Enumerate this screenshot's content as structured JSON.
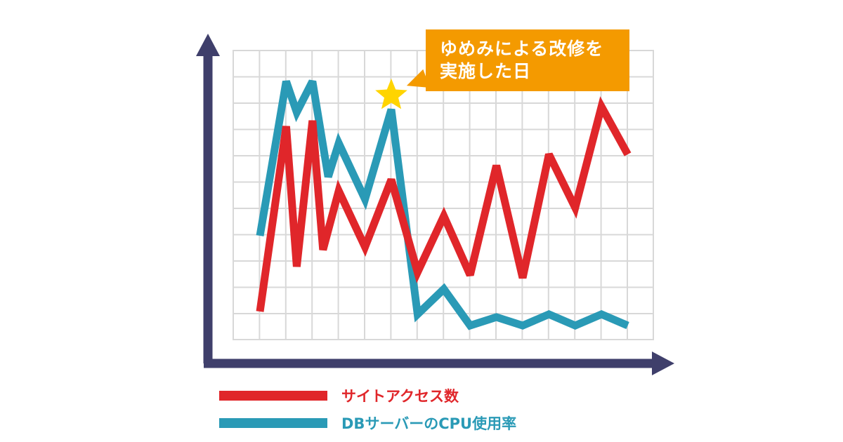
{
  "callout": {
    "line1": "ゆめみによる改修を",
    "line2": "実施した日"
  },
  "legend": [
    {
      "label": "サイトアクセス数",
      "color": "#e0262a"
    },
    {
      "label": "DBサーバーのCPU使用率",
      "color": "#2a9ab6"
    }
  ],
  "chart_data": {
    "type": "line",
    "x": [
      0,
      1,
      2,
      3,
      4,
      5,
      6,
      7,
      8,
      9,
      10,
      11,
      12,
      13,
      14,
      15
    ],
    "ylim": [
      0,
      100
    ],
    "grid": true,
    "legend_position": "bottom-left",
    "series": [
      {
        "name": "サイトアクセス数",
        "color": "#e0262a",
        "points": [
          [
            0,
            10
          ],
          [
            1,
            76
          ],
          [
            1.4,
            26
          ],
          [
            2,
            78
          ],
          [
            2.4,
            32
          ],
          [
            3,
            53
          ],
          [
            4,
            33
          ],
          [
            5,
            57
          ],
          [
            6,
            24
          ],
          [
            7,
            44
          ],
          [
            8,
            23
          ],
          [
            9,
            62
          ],
          [
            10,
            22
          ],
          [
            11,
            66
          ],
          [
            12,
            47
          ],
          [
            13,
            83
          ],
          [
            14,
            66
          ]
        ]
      },
      {
        "name": "DBサーバーのCPU使用率",
        "color": "#2a9ab6",
        "points": [
          [
            0,
            37
          ],
          [
            1,
            92
          ],
          [
            1.4,
            81
          ],
          [
            2,
            92
          ],
          [
            2.6,
            58
          ],
          [
            3,
            70
          ],
          [
            4,
            50
          ],
          [
            5,
            82
          ],
          [
            6,
            9
          ],
          [
            7,
            18
          ],
          [
            8,
            5
          ],
          [
            9,
            8
          ],
          [
            10,
            5
          ],
          [
            11,
            9
          ],
          [
            12,
            5
          ],
          [
            13,
            9
          ],
          [
            14,
            5
          ]
        ]
      }
    ],
    "annotation": {
      "x": 5,
      "y": 82,
      "marker": "star",
      "marker_color": "#ffd400",
      "text": "ゆめみによる改修を実施した日"
    }
  },
  "colors": {
    "axis": "#3f3f6b",
    "grid": "#d8d8d8",
    "callout": "#f49a00"
  }
}
